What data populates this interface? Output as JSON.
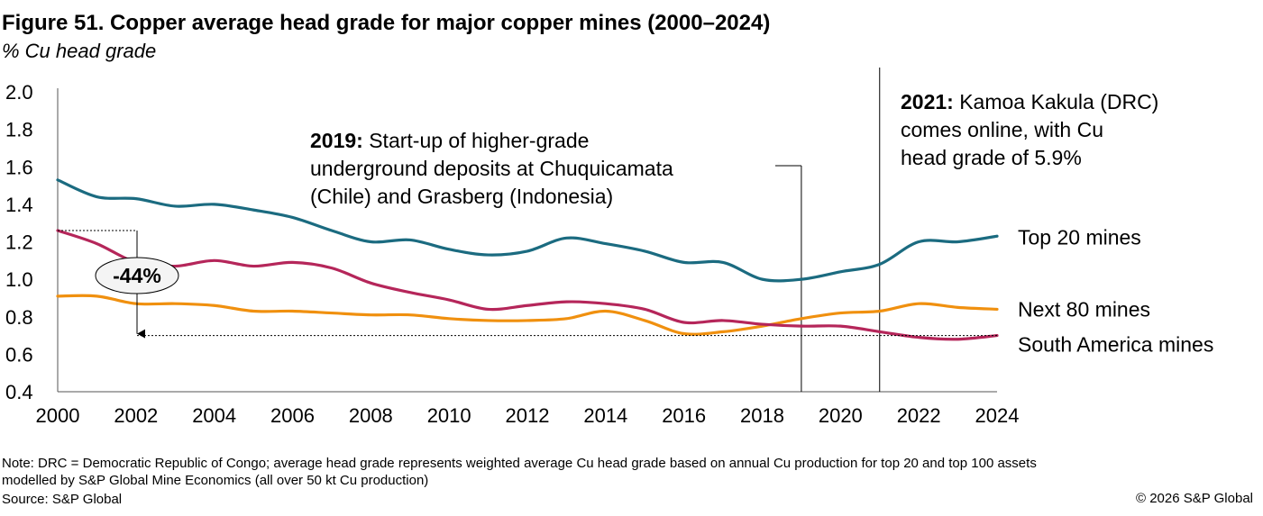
{
  "title": "Figure 51. Copper average head grade for major copper mines (2000–2024)",
  "subtitle": "% Cu head grade",
  "note_line1": "Note: DRC = Democratic Republic of Congo; average head grade represents weighted average Cu head grade based on annual Cu production for top 20 and top 100 assets",
  "note_line2": "modelled by S&P Global Mine Economics (all over 50 kt Cu production)",
  "source": "Source: S&P Global",
  "copyright": "© 2026 S&P Global",
  "chart_data": {
    "type": "line",
    "title": "Figure 51. Copper average head grade for major copper mines (2000–2024)",
    "ylabel": "% Cu head grade",
    "xlabel": "",
    "xlim": [
      2000,
      2024
    ],
    "ylim": [
      0.4,
      2.0
    ],
    "x_ticks": [
      "2000",
      "2002",
      "2004",
      "2006",
      "2008",
      "2010",
      "2012",
      "2014",
      "2016",
      "2018",
      "2020",
      "2022",
      "2024"
    ],
    "y_ticks": [
      "0.4",
      "0.6",
      "0.8",
      "1.0",
      "1.2",
      "1.4",
      "1.6",
      "1.8",
      "2.0"
    ],
    "grid": false,
    "legend": "inline labels at right end of lines",
    "x": [
      2000,
      2001,
      2002,
      2003,
      2004,
      2005,
      2006,
      2007,
      2008,
      2009,
      2010,
      2011,
      2012,
      2013,
      2014,
      2015,
      2016,
      2017,
      2018,
      2019,
      2020,
      2021,
      2022,
      2023,
      2024
    ],
    "series": [
      {
        "name": "Top 20 mines",
        "color": "#1B6B80",
        "values": [
          1.53,
          1.44,
          1.43,
          1.39,
          1.4,
          1.37,
          1.33,
          1.26,
          1.2,
          1.21,
          1.16,
          1.13,
          1.15,
          1.22,
          1.19,
          1.15,
          1.09,
          1.09,
          1.0,
          1.0,
          1.04,
          1.08,
          1.2,
          1.2,
          1.23
        ]
      },
      {
        "name": "Next 80 mines",
        "color": "#F0900F",
        "values": [
          0.91,
          0.91,
          0.87,
          0.87,
          0.86,
          0.83,
          0.83,
          0.82,
          0.81,
          0.81,
          0.79,
          0.78,
          0.78,
          0.79,
          0.83,
          0.78,
          0.71,
          0.72,
          0.75,
          0.79,
          0.82,
          0.83,
          0.87,
          0.85,
          0.84
        ]
      },
      {
        "name": "South America mines",
        "color": "#B5265A",
        "values": [
          1.26,
          1.19,
          1.09,
          1.07,
          1.1,
          1.07,
          1.09,
          1.06,
          0.98,
          0.93,
          0.89,
          0.84,
          0.86,
          0.88,
          0.87,
          0.84,
          0.77,
          0.78,
          0.76,
          0.75,
          0.75,
          0.72,
          0.69,
          0.68,
          0.7
        ]
      }
    ],
    "annotations": [
      {
        "x": 2019,
        "lines": [
          {
            "bold": "2019:",
            "text": " Start-up of higher-grade"
          },
          {
            "bold": "",
            "text": "underground deposits at Chuquicamata"
          },
          {
            "bold": "",
            "text": "(Chile) and Grasberg (Indonesia)"
          }
        ]
      },
      {
        "x": 2021,
        "lines": [
          {
            "bold": "2021:",
            "text": " Kamoa Kakula (DRC)"
          },
          {
            "bold": "",
            "text": "comes online, with Cu"
          },
          {
            "bold": "",
            "text": "head grade of 5.9%"
          }
        ]
      }
    ],
    "change_callout": {
      "label": "-44%",
      "from": 1.26,
      "to": 0.7
    }
  }
}
